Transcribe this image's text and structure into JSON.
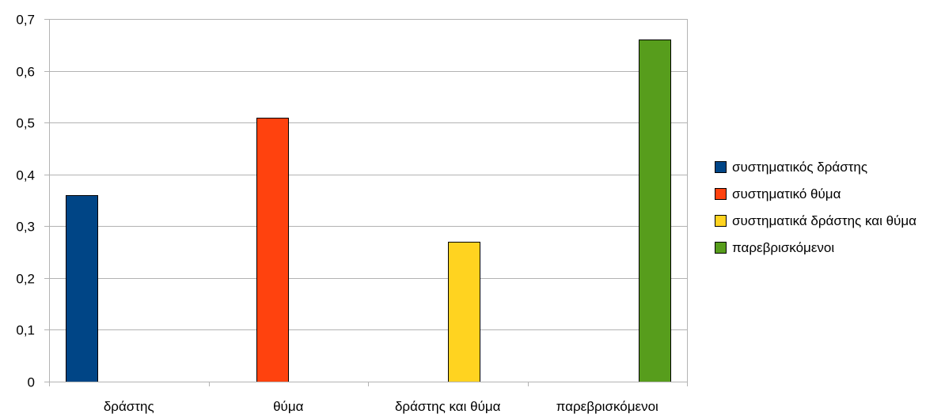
{
  "chart_data": {
    "type": "bar",
    "categories": [
      "δράστης",
      "θύμα",
      "δράστης και θύμα",
      "παρεβρισκόμενοι"
    ],
    "series": [
      {
        "name": " συστηματικός δράστης",
        "values": [
          0.36,
          null,
          null,
          null
        ],
        "color": "#004586"
      },
      {
        "name": "συστηματικό θύμα",
        "values": [
          null,
          0.51,
          null,
          null
        ],
        "color": "#ff420e"
      },
      {
        "name": "συστηματικά δράστης και θύμα",
        "values": [
          null,
          null,
          0.27,
          null
        ],
        "color": "#ffd320"
      },
      {
        "name": "παρεβρισκόμενοι",
        "values": [
          null,
          null,
          null,
          0.66
        ],
        "color": "#579d1c"
      }
    ],
    "ylim": [
      0,
      0.7
    ],
    "yticks": [
      "0",
      "0,1",
      "0,2",
      "0,3",
      "0,4",
      "0,5",
      "0,6",
      "0,7"
    ],
    "grid": true,
    "legend_position": "right",
    "title": "",
    "xlabel": "",
    "ylabel": ""
  }
}
